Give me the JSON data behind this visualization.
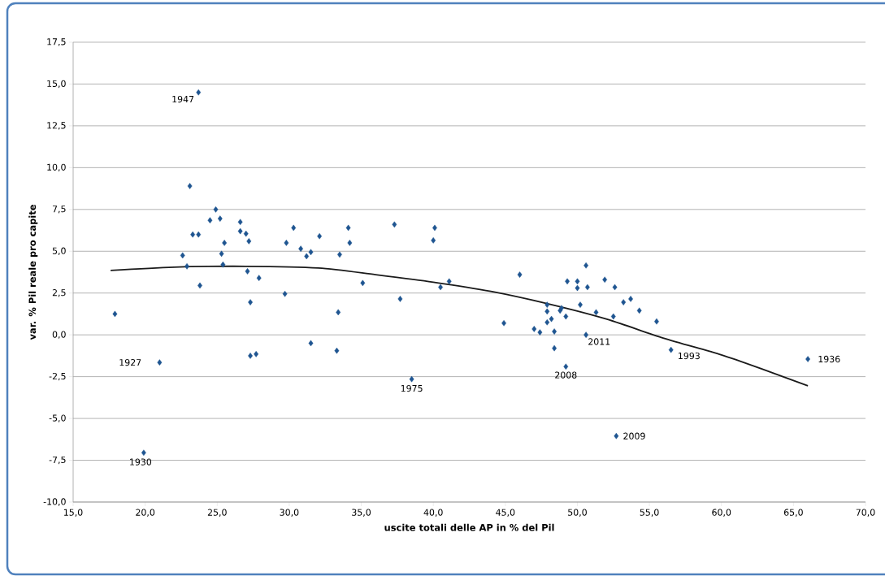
{
  "chart_data": {
    "type": "scatter",
    "xlabel": "uscite totali delle AP in % del Pil",
    "ylabel": "var. % Pil reale pro capite",
    "xlim": [
      15,
      70
    ],
    "ylim": [
      -10,
      17.5
    ],
    "xticks": [
      {
        "value": 15,
        "label": "15,0"
      },
      {
        "value": 20,
        "label": "20,0"
      },
      {
        "value": 25,
        "label": "25,0"
      },
      {
        "value": 30,
        "label": "30,0"
      },
      {
        "value": 35,
        "label": "35,0"
      },
      {
        "value": 40,
        "label": "40,0"
      },
      {
        "value": 45,
        "label": "45,0"
      },
      {
        "value": 50,
        "label": "50,0"
      },
      {
        "value": 55,
        "label": "55,0"
      },
      {
        "value": 60,
        "label": "60,0"
      },
      {
        "value": 65,
        "label": "65,0"
      },
      {
        "value": 70,
        "label": "70,0"
      }
    ],
    "yticks": [
      {
        "value": -10,
        "label": "-10,0"
      },
      {
        "value": -7.5,
        "label": "-7,5"
      },
      {
        "value": -5,
        "label": "-5,0"
      },
      {
        "value": -2.5,
        "label": "-2,5"
      },
      {
        "value": 0,
        "label": "0,0"
      },
      {
        "value": 2.5,
        "label": "2,5"
      },
      {
        "value": 5,
        "label": "5,0"
      },
      {
        "value": 7.5,
        "label": "7,5"
      },
      {
        "value": 10,
        "label": "10,0"
      },
      {
        "value": 12.5,
        "label": "12,5"
      },
      {
        "value": 15,
        "label": "15,0"
      },
      {
        "value": 17.5,
        "label": "17,5"
      }
    ],
    "grid": "y",
    "marker": "diamond",
    "series": [
      {
        "color": "#1f5591",
        "x": [
          17.9,
          21.0,
          19.9,
          23.7,
          23.1,
          22.6,
          22.9,
          23.3,
          23.7,
          23.8,
          24.5,
          24.9,
          25.2,
          25.5,
          25.3,
          25.4,
          26.6,
          26.6,
          27.0,
          27.2,
          27.1,
          27.3,
          27.3,
          27.7,
          27.9,
          29.7,
          29.8,
          30.3,
          30.8,
          31.2,
          31.5,
          31.5,
          32.1,
          33.3,
          33.4,
          33.5,
          34.1,
          34.2,
          35.1,
          37.3,
          37.7,
          38.5,
          40.1,
          40.0,
          40.5,
          41.1,
          44.9,
          46.0,
          47.0,
          47.4,
          47.9,
          47.9,
          47.9,
          48.2,
          48.4,
          48.4,
          48.8,
          48.9,
          49.2,
          49.2,
          49.3,
          50.0,
          50.0,
          50.2,
          50.6,
          50.7,
          50.6,
          51.3,
          51.9,
          52.6,
          52.5,
          52.7,
          53.2,
          53.7,
          54.3,
          55.5,
          56.5,
          66.0
        ],
        "values": [
          1.25,
          -1.65,
          -7.05,
          14.5,
          8.9,
          4.75,
          4.1,
          6.0,
          6.0,
          2.95,
          6.85,
          7.5,
          6.95,
          5.5,
          4.85,
          4.2,
          6.75,
          6.2,
          6.05,
          5.6,
          3.8,
          1.95,
          -1.25,
          -1.15,
          3.4,
          2.45,
          5.5,
          6.4,
          5.15,
          4.7,
          4.95,
          -0.5,
          5.9,
          -0.95,
          1.35,
          4.8,
          6.4,
          5.5,
          3.1,
          6.6,
          2.15,
          -2.65,
          6.4,
          5.65,
          2.85,
          3.2,
          0.7,
          3.6,
          0.35,
          0.15,
          1.8,
          1.4,
          0.75,
          0.95,
          0.2,
          -0.8,
          1.45,
          1.6,
          1.1,
          -1.9,
          3.2,
          3.2,
          2.8,
          1.8,
          4.15,
          2.85,
          0.0,
          1.35,
          3.3,
          2.85,
          1.1,
          -6.05,
          1.95,
          2.15,
          1.45,
          0.8,
          -0.9,
          -1.45
        ]
      },
      {
        "type": "line",
        "color": "#1a1a1a",
        "marker": "none",
        "line_style": "solid",
        "x": [
          17.6,
          22,
          27,
          32,
          36,
          40,
          44,
          48,
          52,
          56,
          60,
          63,
          66
        ],
        "values": [
          3.85,
          4.05,
          4.1,
          4.0,
          3.6,
          3.15,
          2.6,
          1.85,
          0.95,
          -0.2,
          -1.2,
          -2.1,
          -3.05
        ]
      }
    ],
    "annotations": [
      {
        "text": "1947",
        "x": 23.7,
        "y": 14.5
      },
      {
        "text": "1927",
        "x": 21.0,
        "y": -1.65
      },
      {
        "text": "1930",
        "x": 19.9,
        "y": -7.05
      },
      {
        "text": "1975",
        "x": 38.5,
        "y": -2.65
      },
      {
        "text": "2008",
        "x": 49.2,
        "y": -1.9
      },
      {
        "text": "2011",
        "x": 50.6,
        "y": 0.0
      },
      {
        "text": "2009",
        "x": 52.7,
        "y": -6.05
      },
      {
        "text": "1993",
        "x": 56.5,
        "y": -0.9
      },
      {
        "text": "1936",
        "x": 66.0,
        "y": -1.45
      }
    ]
  }
}
